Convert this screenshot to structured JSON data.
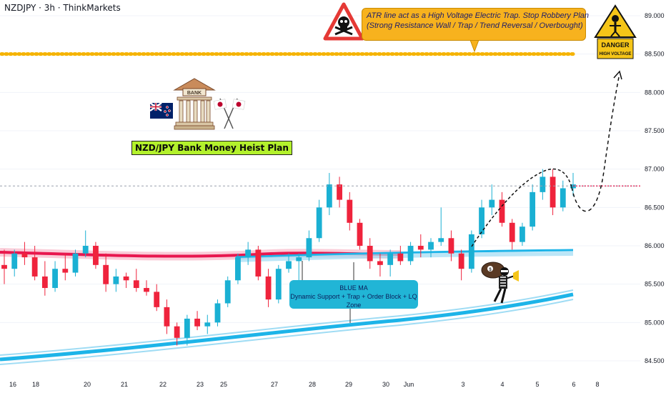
{
  "header": {
    "symbol_title": "NZDJPY · 3h · ThinkMarkets"
  },
  "colors": {
    "bull": "#26a69a",
    "bull_fill": "#1ab0d3",
    "bear": "#ef233c",
    "red_band": "#e8174f",
    "blue_band": "#1db4e8",
    "dotted_line": "#f5b300",
    "callout_bg": "#f7b21e",
    "callout_blue_bg": "#21b5d6",
    "plan_bg": "#b3f12c"
  },
  "annotations": {
    "top_callout_line1": "ATR line act as a High Voltage Electric Trap. Stop Robbery Plan",
    "top_callout_line2": "(Strong Resistance Wall / Trap / Trend Reversal / Overbought)",
    "blue_callout_title": "BLUE MA",
    "blue_callout_text": "Dynamic Support + Trap + Order Block + LQ Zone",
    "plan_label": "NZD/JPY Bank Money Heist Plan",
    "bank_sign": "BANK",
    "danger_title": "DANGER",
    "danger_sub": "HIGH VOLTAGE"
  },
  "chart_data": {
    "type": "candlestick",
    "title": "NZDJPY · 3h · ThinkMarkets",
    "ylim": [
      84.4,
      89.2
    ],
    "price_ticks": [
      "89.000",
      "88.500",
      "88.000",
      "87.500",
      "87.000",
      "86.500",
      "86.000",
      "85.500",
      "85.000",
      "84.500"
    ],
    "time_ticks": [
      "16",
      "18",
      "20",
      "21",
      "22",
      "23",
      "25",
      "27",
      "28",
      "29",
      "30",
      "Jun",
      "3",
      "4",
      "5",
      "6",
      "8"
    ],
    "resistance_level": 88.5,
    "current_price_level": 86.78,
    "candles_approx": [
      [
        85.75,
        85.95,
        85.5,
        85.7
      ],
      [
        85.7,
        85.95,
        85.6,
        85.9
      ],
      [
        85.9,
        86.05,
        85.75,
        85.85
      ],
      [
        85.85,
        86.0,
        85.55,
        85.6
      ],
      [
        85.6,
        85.8,
        85.35,
        85.45
      ],
      [
        85.45,
        85.8,
        85.4,
        85.7
      ],
      [
        85.7,
        85.9,
        85.55,
        85.65
      ],
      [
        85.65,
        85.95,
        85.6,
        85.9
      ],
      [
        85.9,
        86.2,
        85.85,
        86.0
      ],
      [
        86.0,
        86.05,
        85.7,
        85.75
      ],
      [
        85.75,
        85.9,
        85.4,
        85.5
      ],
      [
        85.5,
        85.7,
        85.4,
        85.6
      ],
      [
        85.6,
        85.65,
        85.45,
        85.55
      ],
      [
        85.55,
        85.7,
        85.4,
        85.45
      ],
      [
        85.45,
        85.55,
        85.35,
        85.4
      ],
      [
        85.4,
        85.5,
        85.15,
        85.2
      ],
      [
        85.2,
        85.3,
        84.85,
        84.95
      ],
      [
        84.95,
        85.0,
        84.7,
        84.8
      ],
      [
        84.8,
        85.1,
        84.7,
        85.05
      ],
      [
        85.05,
        85.15,
        84.9,
        84.95
      ],
      [
        84.95,
        85.1,
        84.85,
        85.0
      ],
      [
        85.0,
        85.3,
        84.95,
        85.25
      ],
      [
        85.25,
        85.6,
        85.2,
        85.55
      ],
      [
        85.55,
        85.9,
        85.5,
        85.85
      ],
      [
        85.85,
        86.05,
        85.75,
        85.95
      ],
      [
        85.95,
        86.0,
        85.55,
        85.6
      ],
      [
        85.6,
        85.7,
        85.2,
        85.3
      ],
      [
        85.3,
        85.75,
        85.25,
        85.7
      ],
      [
        85.7,
        85.9,
        85.65,
        85.8
      ],
      [
        85.8,
        85.9,
        85.55,
        85.85
      ],
      [
        85.85,
        86.2,
        85.8,
        86.1
      ],
      [
        86.1,
        86.6,
        86.05,
        86.5
      ],
      [
        86.5,
        86.95,
        86.4,
        86.8
      ],
      [
        86.8,
        86.9,
        86.5,
        86.6
      ],
      [
        86.6,
        86.7,
        86.2,
        86.3
      ],
      [
        86.3,
        86.35,
        85.95,
        86.0
      ],
      [
        86.0,
        86.1,
        85.7,
        85.8
      ],
      [
        85.8,
        85.9,
        85.6,
        85.75
      ],
      [
        85.75,
        85.95,
        85.6,
        85.9
      ],
      [
        85.9,
        86.0,
        85.75,
        85.8
      ],
      [
        85.8,
        86.05,
        85.75,
        86.0
      ],
      [
        86.0,
        86.15,
        85.85,
        85.95
      ],
      [
        85.95,
        86.1,
        85.85,
        86.05
      ],
      [
        86.05,
        86.5,
        86.0,
        86.1
      ],
      [
        86.1,
        86.2,
        85.8,
        85.9
      ],
      [
        85.9,
        85.95,
        85.55,
        85.7
      ],
      [
        85.7,
        86.2,
        85.65,
        86.15
      ],
      [
        86.15,
        86.6,
        86.1,
        86.5
      ],
      [
        86.5,
        86.8,
        86.4,
        86.6
      ],
      [
        86.6,
        86.7,
        86.25,
        86.3
      ],
      [
        86.3,
        86.35,
        85.95,
        86.05
      ],
      [
        86.05,
        86.3,
        86.0,
        86.25
      ],
      [
        86.25,
        86.8,
        86.2,
        86.7
      ],
      [
        86.7,
        87.0,
        86.6,
        86.9
      ],
      [
        86.9,
        87.0,
        86.4,
        86.5
      ],
      [
        86.5,
        86.85,
        86.45,
        86.75
      ],
      [
        86.75,
        86.95,
        86.65,
        86.8
      ]
    ]
  }
}
